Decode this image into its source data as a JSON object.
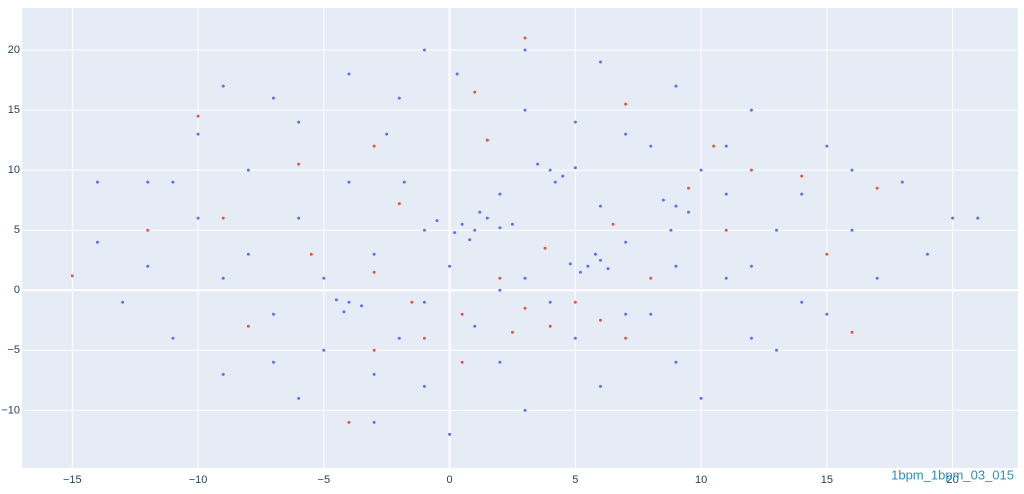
{
  "chart_data": {
    "type": "scatter",
    "annotation": "1bpm_1bpm_03_015",
    "xlim": [
      -17,
      22.6
    ],
    "ylim": [
      -14.8,
      23.5
    ],
    "xticks": [
      {
        "value": -15,
        "label": "−15"
      },
      {
        "value": -10,
        "label": "−10"
      },
      {
        "value": -5,
        "label": "−5"
      },
      0,
      5,
      10,
      15,
      20
    ],
    "yticks": [
      {
        "value": -10,
        "label": "−10"
      },
      {
        "value": -5,
        "label": "−5"
      },
      0,
      5,
      10,
      15,
      20
    ],
    "grid": true,
    "series": [
      {
        "color": "#636efa",
        "x": [
          0.5,
          1,
          1.5,
          0.2,
          2,
          -0.5,
          1.2,
          0.8,
          2.5,
          -1,
          5.5,
          6,
          5.2,
          6.3,
          5.8,
          4.8,
          -4,
          -4.5,
          -3.5,
          -4.2,
          4,
          4.5,
          3.5,
          5,
          4.2,
          9,
          8.5,
          9.5,
          8.8,
          0.3,
          1.5,
          -1.8,
          -2.5,
          -6,
          -8,
          -10,
          -12,
          -13,
          -11,
          -9,
          -6,
          -3,
          0,
          3,
          6,
          9,
          12,
          15,
          17,
          19,
          20,
          18,
          15,
          12,
          9,
          6,
          3,
          -1,
          -4,
          -7,
          -10,
          -12,
          -14,
          -6,
          -3,
          -7,
          -2,
          2,
          5,
          8,
          11,
          13,
          10,
          7,
          3,
          -4,
          -8,
          -5,
          1,
          4,
          7,
          11,
          14,
          16,
          14,
          10,
          -1,
          -5,
          -9,
          -11,
          -2,
          2,
          6,
          9,
          12,
          16,
          -14,
          21,
          3,
          2,
          -1,
          0,
          7,
          13,
          -7,
          -3,
          5,
          8,
          -9,
          11
        ],
        "values": [
          5.5,
          5,
          6,
          4.8,
          5.2,
          5.8,
          6.5,
          4.2,
          5.5,
          5,
          2,
          2.5,
          1.5,
          1.8,
          3,
          2.2,
          -1,
          -0.8,
          -1.3,
          -1.8,
          10,
          9.5,
          10.5,
          10.2,
          9,
          7,
          7.5,
          6.5,
          5,
          18,
          12.5,
          9,
          13,
          14,
          10,
          6,
          2,
          -1,
          -4,
          -7,
          -9,
          -11,
          -12,
          -10,
          -8,
          -6,
          -4,
          -2,
          1,
          3,
          6,
          9,
          12,
          15,
          17,
          19,
          20,
          20,
          18,
          16,
          13,
          9,
          4,
          6,
          3,
          -2,
          -4,
          -6,
          -4,
          -2,
          1,
          5,
          10,
          13,
          15,
          9,
          3,
          -5,
          -3,
          -1,
          4,
          8,
          8,
          5,
          -1,
          -9,
          -8,
          1,
          1,
          9,
          16,
          8,
          7,
          2,
          2,
          10,
          9,
          6,
          1,
          0,
          -1,
          2,
          -2,
          -5,
          -6,
          -7,
          14,
          12,
          17,
          12
        ]
      },
      {
        "color": "#ef553b",
        "x": [
          -3,
          1.5,
          6.5,
          3.8,
          2,
          3,
          5,
          6,
          0.5,
          -1,
          -3,
          -1.5,
          2.5,
          4,
          7,
          9.5,
          10.5,
          12,
          14,
          17,
          -10,
          -6,
          -5.5,
          -3,
          -8,
          -12,
          -15,
          1,
          7,
          3,
          -9,
          15,
          16,
          -4,
          0.5,
          11,
          8,
          -2
        ],
        "values": [
          12,
          12.5,
          5.5,
          3.5,
          1,
          -1.5,
          -1,
          -2.5,
          -2,
          -4,
          -5,
          -1,
          -3.5,
          -3,
          -4,
          8.5,
          12,
          10,
          9.5,
          8.5,
          14.5,
          10.5,
          3,
          1.5,
          -3,
          5,
          1.2,
          16.5,
          15.5,
          21,
          6,
          3,
          -3.5,
          -11,
          -6,
          5,
          1,
          7.2
        ]
      }
    ]
  }
}
